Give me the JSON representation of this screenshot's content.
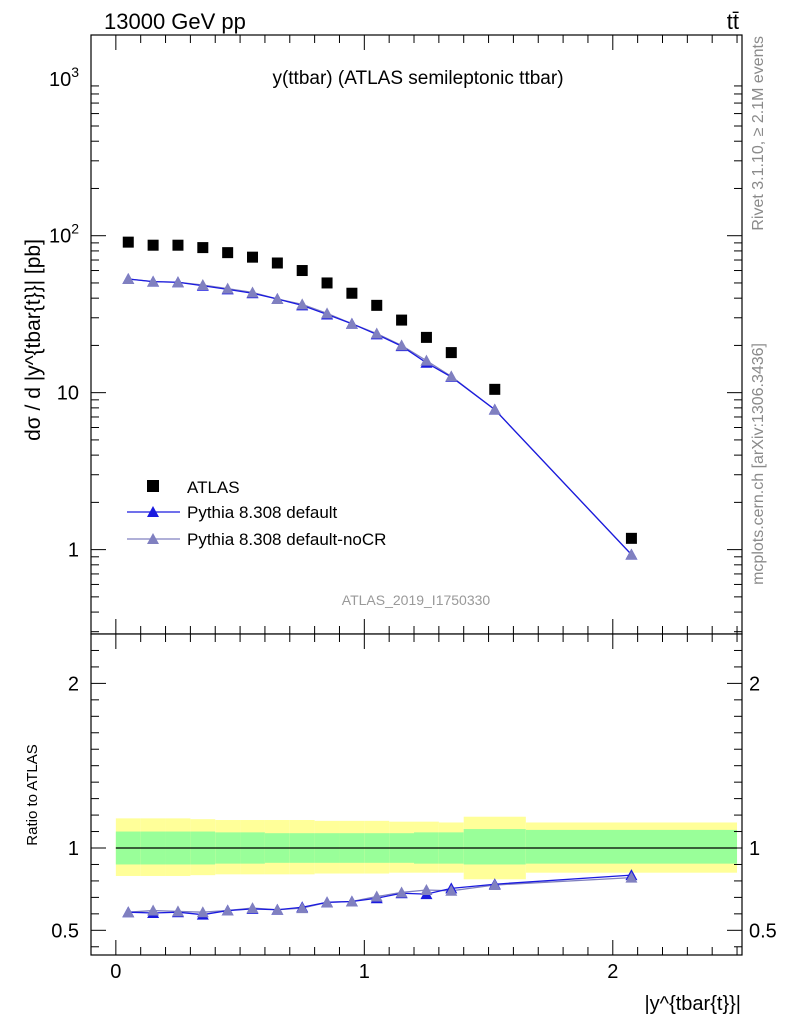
{
  "header": {
    "energy_label": "13000 GeV pp",
    "process_label": "tt̄"
  },
  "side_text": {
    "rivet": "Rivet 3.1.10, ≥ 2.1M events",
    "mcplots": "mcplots.cern.ch [arXiv:1306.3436]"
  },
  "colors": {
    "data": "#000000",
    "pythia_default": "#1a1adf",
    "pythia_nocr": "#8080c0",
    "band_inner": "#99ff99",
    "band_outer": "#ffff99"
  },
  "chart_data": [
    {
      "type": "scatter",
      "title": "y(ttbar) (ATLAS semileptonic ttbar)",
      "analysis_id": "ATLAS_2019_I1750330",
      "xlabel": "|y^{tbar{t}}|",
      "ylabel": "dσ / d |y^{tbar{t}}| [pb]",
      "yscale": "log",
      "xlim": [
        -0.1,
        2.52
      ],
      "ylim": [
        0.29,
        1900
      ],
      "ytick_labels": [
        "1",
        "10",
        "10^2",
        "10^3"
      ],
      "legend_position": "lower-left",
      "x": [
        0.05,
        0.15,
        0.25,
        0.35,
        0.45,
        0.55,
        0.65,
        0.75,
        0.85,
        0.95,
        1.05,
        1.15,
        1.25,
        1.35,
        1.525,
        2.075
      ],
      "series": [
        {
          "name": "ATLAS",
          "marker": "square",
          "values": [
            91,
            87,
            87,
            84,
            78,
            73,
            67,
            60,
            50,
            43,
            36,
            29,
            22.5,
            18,
            10.5,
            1.18
          ]
        },
        {
          "name": "Pythia 8.308 default",
          "marker": "triangle",
          "values": [
            53,
            51,
            50.5,
            48,
            45.5,
            43,
            39.5,
            36,
            31.5,
            27.5,
            23.5,
            19.8,
            15.5,
            12.6,
            7.8,
            0.93
          ]
        },
        {
          "name": "Pythia 8.308 default-noCR",
          "marker": "triangle",
          "values": [
            53,
            51,
            50.5,
            48.5,
            46,
            43.5,
            39.5,
            36.5,
            32,
            27.5,
            23.8,
            20,
            16,
            12.7,
            7.8,
            0.93
          ]
        }
      ]
    },
    {
      "type": "line",
      "ylabel": "Ratio to ATLAS",
      "xlabel": "|y^{tbar{t}}|",
      "xlim": [
        -0.1,
        2.52
      ],
      "ylim": [
        0.35,
        2.3
      ],
      "xtick_labels": [
        "0",
        "1",
        "2"
      ],
      "ytick_labels": [
        "0.5",
        "1",
        "2"
      ],
      "x": [
        0.05,
        0.15,
        0.25,
        0.35,
        0.45,
        0.55,
        0.65,
        0.75,
        0.85,
        0.95,
        1.05,
        1.15,
        1.25,
        1.35,
        1.525,
        2.075
      ],
      "bin_edges": [
        0,
        0.1,
        0.2,
        0.3,
        0.4,
        0.5,
        0.6,
        0.7,
        0.8,
        0.9,
        1.0,
        1.1,
        1.2,
        1.3,
        1.4,
        1.65,
        2.5
      ],
      "band_inner": [
        [
          0.9,
          1.1
        ],
        [
          0.9,
          1.1
        ],
        [
          0.9,
          1.1
        ],
        [
          0.9,
          1.1
        ],
        [
          0.905,
          1.095
        ],
        [
          0.905,
          1.095
        ],
        [
          0.91,
          1.09
        ],
        [
          0.91,
          1.09
        ],
        [
          0.91,
          1.09
        ],
        [
          0.91,
          1.09
        ],
        [
          0.91,
          1.09
        ],
        [
          0.91,
          1.09
        ],
        [
          0.905,
          1.095
        ],
        [
          0.905,
          1.095
        ],
        [
          0.9,
          1.115
        ],
        [
          0.905,
          1.11
        ]
      ],
      "band_outer": [
        [
          0.83,
          1.18
        ],
        [
          0.83,
          1.18
        ],
        [
          0.83,
          1.18
        ],
        [
          0.835,
          1.175
        ],
        [
          0.84,
          1.17
        ],
        [
          0.84,
          1.17
        ],
        [
          0.84,
          1.17
        ],
        [
          0.84,
          1.17
        ],
        [
          0.845,
          1.165
        ],
        [
          0.845,
          1.165
        ],
        [
          0.845,
          1.165
        ],
        [
          0.85,
          1.16
        ],
        [
          0.85,
          1.16
        ],
        [
          0.85,
          1.155
        ],
        [
          0.81,
          1.19
        ],
        [
          0.85,
          1.155
        ]
      ],
      "series": [
        {
          "name": "Pythia 8.308 default",
          "values": [
            0.61,
            0.605,
            0.61,
            0.595,
            0.62,
            0.63,
            0.625,
            0.64,
            0.67,
            0.675,
            0.695,
            0.725,
            0.72,
            0.755,
            0.78,
            0.835
          ]
        },
        {
          "name": "Pythia 8.308 default-noCR",
          "values": [
            0.61,
            0.62,
            0.615,
            0.61,
            0.62,
            0.635,
            0.625,
            0.635,
            0.67,
            0.675,
            0.705,
            0.73,
            0.745,
            0.74,
            0.775,
            0.82
          ]
        }
      ]
    }
  ]
}
